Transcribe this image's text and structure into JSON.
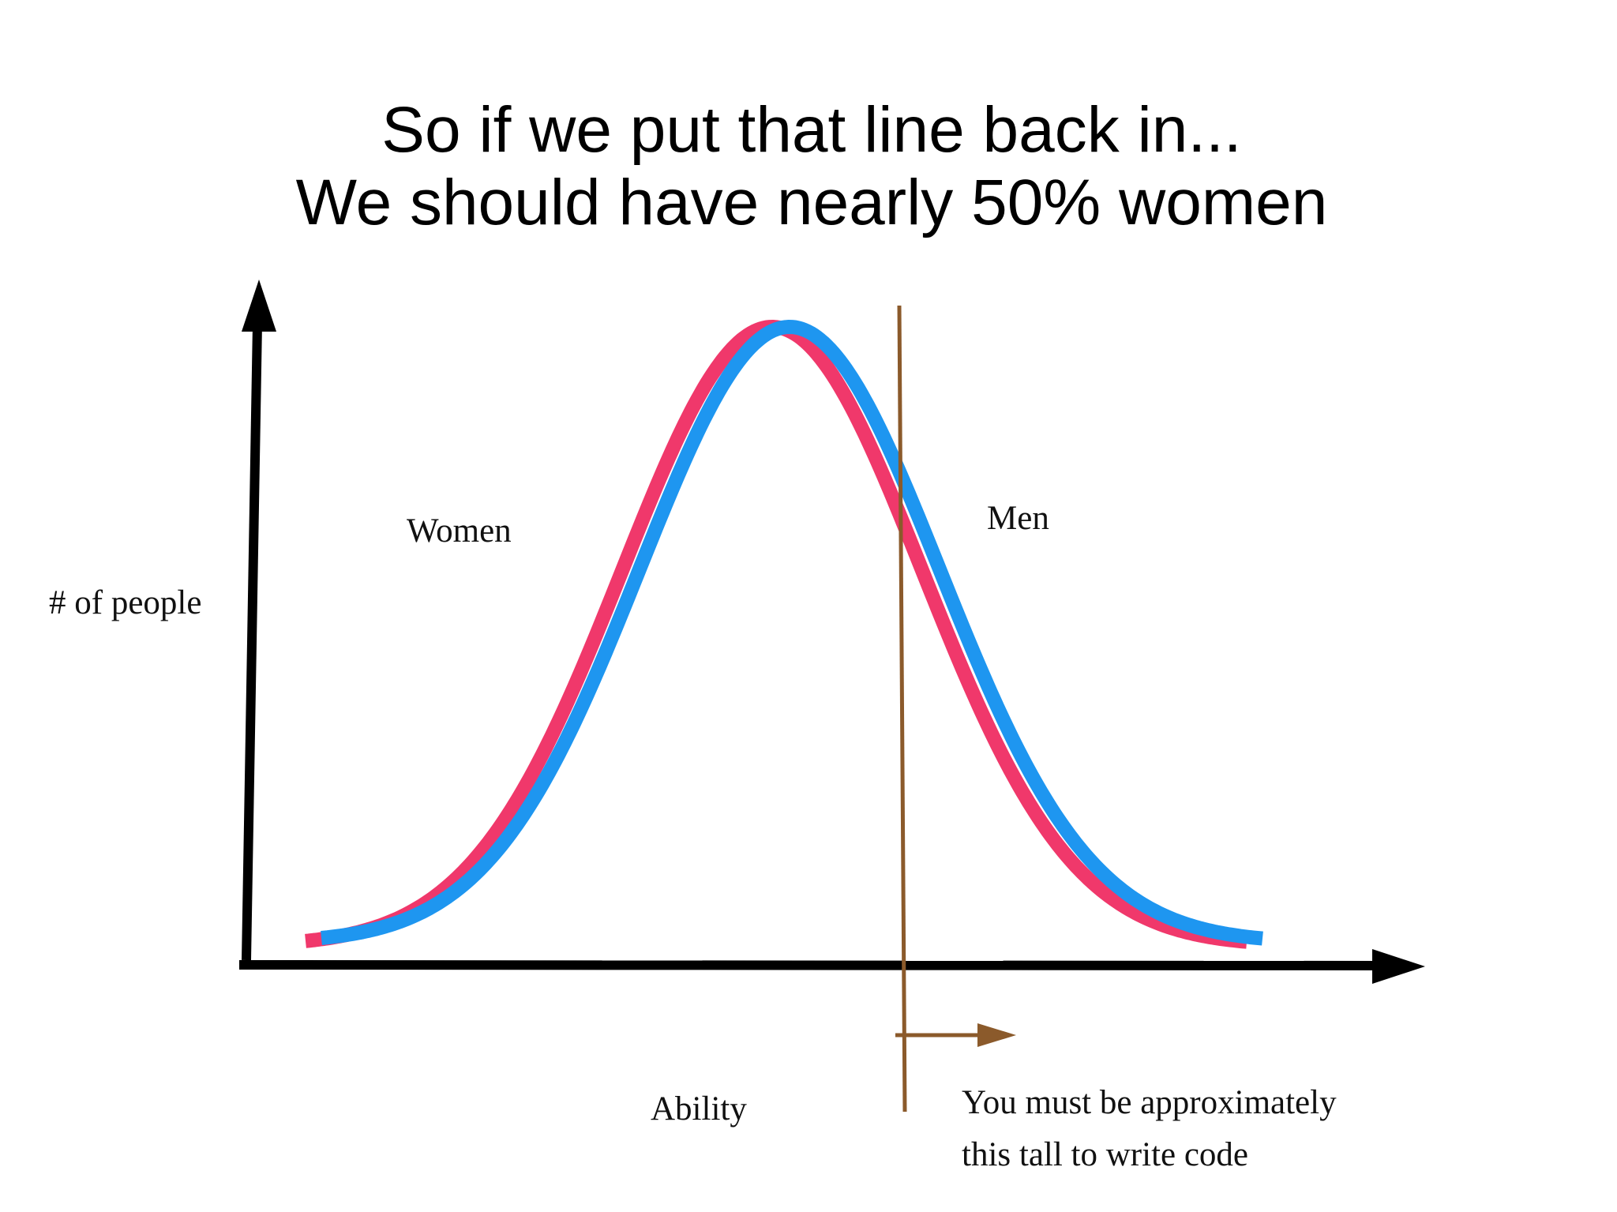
{
  "title": {
    "line1": "So if we put that line back in...",
    "line2": "We should have nearly 50% women"
  },
  "labels": {
    "women": "Women",
    "men": "Men",
    "y_axis": "# of people",
    "x_axis": "Ability",
    "threshold_line1": "You must be approximately",
    "threshold_line2": "this tall to write code"
  }
}
